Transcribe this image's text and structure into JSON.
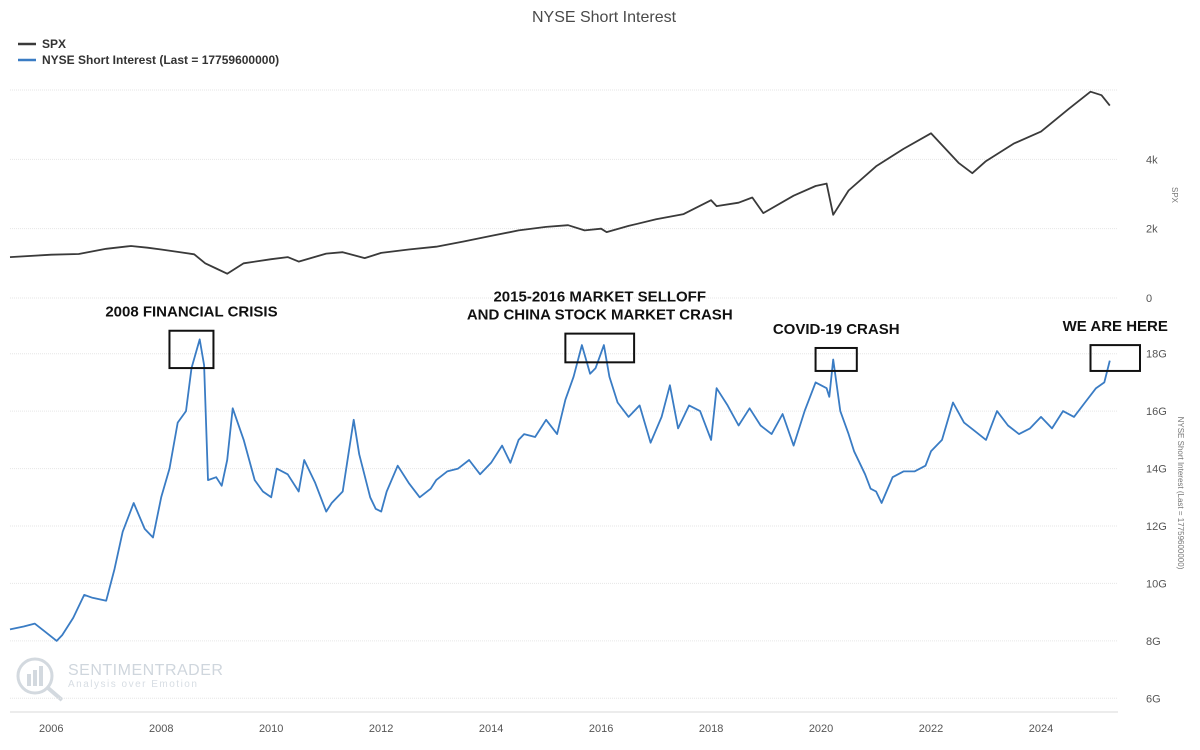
{
  "colors": {
    "spx_line": "#3a3a3a",
    "short_interest_line": "#3a7cc4",
    "annotation_box": "#111111",
    "watermark": "#cfd6dd"
  },
  "legend": {
    "items": [
      {
        "label": "SPX",
        "color": "#3a3a3a"
      },
      {
        "label": "NYSE Short Interest (Last = 17759600000)",
        "color": "#3a7cc4"
      }
    ]
  },
  "watermark": {
    "title": "SENTIMENTRADER",
    "subtitle": "Analysis over Emotion",
    "icon": "chart-logo-icon"
  },
  "chart_data": [
    {
      "type": "line",
      "title": "NYSE Short Interest",
      "ylabel": "SPX",
      "ylim": [
        0,
        6000
      ],
      "y_ticks": [
        {
          "v": 0,
          "label": "0"
        },
        {
          "v": 2000,
          "label": "2k"
        },
        {
          "v": 4000,
          "label": "4k"
        }
      ],
      "grid": true,
      "legend_position": "top-left",
      "series": [
        {
          "name": "SPX",
          "x": [
            2005.25,
            2006.0,
            2006.5,
            2007.0,
            2007.45,
            2007.75,
            2008.0,
            2008.3,
            2008.6,
            2008.8,
            2009.0,
            2009.2,
            2009.5,
            2010.0,
            2010.3,
            2010.5,
            2011.0,
            2011.3,
            2011.7,
            2012.0,
            2012.5,
            2013.0,
            2013.5,
            2014.0,
            2014.5,
            2015.0,
            2015.4,
            2015.7,
            2016.0,
            2016.1,
            2016.5,
            2017.0,
            2017.5,
            2018.0,
            2018.1,
            2018.5,
            2018.75,
            2018.95,
            2019.5,
            2019.9,
            2020.1,
            2020.22,
            2020.5,
            2021.0,
            2021.5,
            2022.0,
            2022.5,
            2022.75,
            2023.0,
            2023.5,
            2024.0,
            2024.5,
            2024.9,
            2025.1,
            2025.25
          ],
          "y": [
            1180,
            1250,
            1270,
            1420,
            1500,
            1450,
            1400,
            1330,
            1260,
            1000,
            850,
            700,
            1000,
            1120,
            1180,
            1050,
            1280,
            1320,
            1150,
            1300,
            1400,
            1480,
            1630,
            1790,
            1950,
            2050,
            2100,
            1950,
            2000,
            1900,
            2080,
            2270,
            2420,
            2820,
            2650,
            2750,
            2900,
            2450,
            2950,
            3230,
            3300,
            2400,
            3100,
            3800,
            4300,
            4750,
            3900,
            3600,
            3950,
            4450,
            4800,
            5450,
            5950,
            5850,
            5550
          ]
        }
      ]
    },
    {
      "type": "line",
      "ylabel": "NYSE Short Interest (Last = 17759600000)",
      "ylim": [
        5000000000,
        19000000000
      ],
      "y_ticks": [
        {
          "v": 6000000000,
          "label": "6G"
        },
        {
          "v": 8000000000,
          "label": "8G"
        },
        {
          "v": 10000000000,
          "label": "10G"
        },
        {
          "v": 12000000000,
          "label": "12G"
        },
        {
          "v": 14000000000,
          "label": "14G"
        },
        {
          "v": 16000000000,
          "label": "16G"
        },
        {
          "v": 18000000000,
          "label": "18G"
        }
      ],
      "xlim": [
        2005.25,
        2025.4
      ],
      "x_ticks": [
        {
          "v": 2006,
          "label": "2006"
        },
        {
          "v": 2008,
          "label": "2008"
        },
        {
          "v": 2010,
          "label": "2010"
        },
        {
          "v": 2012,
          "label": "2012"
        },
        {
          "v": 2014,
          "label": "2014"
        },
        {
          "v": 2016,
          "label": "2016"
        },
        {
          "v": 2018,
          "label": "2018"
        },
        {
          "v": 2020,
          "label": "2020"
        },
        {
          "v": 2022,
          "label": "2022"
        },
        {
          "v": 2024,
          "label": "2024"
        }
      ],
      "grid": true,
      "series": [
        {
          "name": "NYSE Short Interest (Last = 17759600000)",
          "x": [
            2005.25,
            2005.5,
            2005.7,
            2005.9,
            2006.1,
            2006.2,
            2006.4,
            2006.6,
            2006.75,
            2007.0,
            2007.15,
            2007.3,
            2007.5,
            2007.7,
            2007.85,
            2008.0,
            2008.15,
            2008.3,
            2008.45,
            2008.55,
            2008.7,
            2008.78,
            2008.85,
            2009.0,
            2009.1,
            2009.2,
            2009.3,
            2009.5,
            2009.7,
            2009.85,
            2010.0,
            2010.1,
            2010.3,
            2010.5,
            2010.6,
            2010.8,
            2011.0,
            2011.1,
            2011.3,
            2011.5,
            2011.6,
            2011.8,
            2011.9,
            2012.0,
            2012.1,
            2012.3,
            2012.5,
            2012.7,
            2012.9,
            2013.0,
            2013.2,
            2013.4,
            2013.6,
            2013.8,
            2014.0,
            2014.2,
            2014.35,
            2014.5,
            2014.6,
            2014.8,
            2015.0,
            2015.2,
            2015.35,
            2015.5,
            2015.65,
            2015.8,
            2015.9,
            2016.05,
            2016.15,
            2016.3,
            2016.5,
            2016.7,
            2016.9,
            2017.1,
            2017.25,
            2017.4,
            2017.6,
            2017.8,
            2018.0,
            2018.1,
            2018.3,
            2018.5,
            2018.7,
            2018.9,
            2019.1,
            2019.3,
            2019.5,
            2019.7,
            2019.9,
            2020.1,
            2020.15,
            2020.22,
            2020.35,
            2020.5,
            2020.6,
            2020.8,
            2020.9,
            2021.0,
            2021.1,
            2021.3,
            2021.5,
            2021.7,
            2021.9,
            2022.0,
            2022.2,
            2022.4,
            2022.6,
            2022.8,
            2023.0,
            2023.2,
            2023.4,
            2023.6,
            2023.8,
            2024.0,
            2024.2,
            2024.4,
            2024.6,
            2024.8,
            2025.0,
            2025.15,
            2025.25
          ],
          "y": [
            8400000000,
            8500000000,
            8600000000,
            8300000000,
            8000000000,
            8200000000,
            8800000000,
            9600000000,
            9500000000,
            9400000000,
            10500000000,
            11800000000,
            12800000000,
            11900000000,
            11600000000,
            13000000000,
            14000000000,
            15600000000,
            16000000000,
            17500000000,
            18500000000,
            17600000000,
            13600000000,
            13700000000,
            13400000000,
            14300000000,
            16100000000,
            15000000000,
            13600000000,
            13200000000,
            13000000000,
            14000000000,
            13800000000,
            13200000000,
            14300000000,
            13500000000,
            12500000000,
            12800000000,
            13200000000,
            15700000000,
            14500000000,
            13000000000,
            12600000000,
            12500000000,
            13200000000,
            14100000000,
            13500000000,
            13000000000,
            13300000000,
            13600000000,
            13900000000,
            14000000000,
            14300000000,
            13800000000,
            14200000000,
            14800000000,
            14200000000,
            15000000000,
            15200000000,
            15100000000,
            15700000000,
            15200000000,
            16400000000,
            17200000000,
            18300000000,
            17300000000,
            17500000000,
            18300000000,
            17200000000,
            16300000000,
            15800000000,
            16200000000,
            14900000000,
            15800000000,
            16900000000,
            15400000000,
            16200000000,
            16000000000,
            15000000000,
            16800000000,
            16200000000,
            15500000000,
            16100000000,
            15500000000,
            15200000000,
            15900000000,
            14800000000,
            16000000000,
            17000000000,
            16800000000,
            16500000000,
            17800000000,
            16000000000,
            15200000000,
            14600000000,
            13800000000,
            13300000000,
            13200000000,
            12800000000,
            13700000000,
            13900000000,
            13900000000,
            14100000000,
            14600000000,
            15000000000,
            16300000000,
            15600000000,
            15300000000,
            15000000000,
            16000000000,
            15500000000,
            15200000000,
            15400000000,
            15800000000,
            15400000000,
            16000000000,
            15800000000,
            16300000000,
            16800000000,
            17000000000,
            17759600000
          ]
        }
      ]
    }
  ],
  "annotations": [
    {
      "lines": [
        "2008 FINANCIAL CRISIS"
      ],
      "box_x": [
        2008.15,
        2008.95
      ],
      "box_y": [
        17500000000,
        18800000000
      ]
    },
    {
      "lines": [
        "2015-2016 MARKET SELLOFF",
        "AND CHINA STOCK MARKET CRASH"
      ],
      "box_x": [
        2015.35,
        2016.6
      ],
      "box_y": [
        17700000000,
        18700000000
      ]
    },
    {
      "lines": [
        "COVID-19 CRASH"
      ],
      "box_x": [
        2019.9,
        2020.65
      ],
      "box_y": [
        17400000000,
        18200000000
      ]
    },
    {
      "lines": [
        "WE ARE HERE"
      ],
      "box_x": [
        2024.9,
        2025.8
      ],
      "box_y": [
        17400000000,
        18300000000
      ]
    }
  ]
}
